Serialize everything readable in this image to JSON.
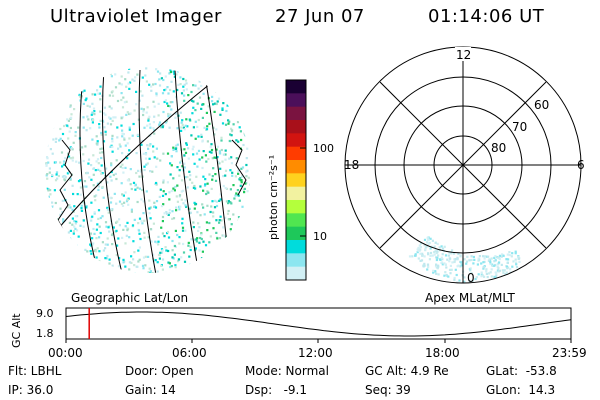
{
  "header": {
    "instrument": "Ultraviolet Imager",
    "date": "27 Jun 07",
    "time": "01:14:06 UT"
  },
  "left_panel": {
    "label": "Geographic Lat/Lon"
  },
  "colorbar": {
    "unit_label": "photon cm⁻²s⁻¹",
    "ticks": [
      "100",
      "10"
    ],
    "colors": [
      "#1a0033",
      "#4b0f5a",
      "#7a1340",
      "#a8101a",
      "#d21410",
      "#ff3c00",
      "#ff8c00",
      "#ffd21e",
      "#f2f2a0",
      "#b4ff3c",
      "#50e650",
      "#1ec85a",
      "#00dcdc",
      "#8ce6f0",
      "#d2f0f5"
    ]
  },
  "right_panel": {
    "label": "Apex MLat/MLT",
    "mlt_labels": [
      "12",
      "18",
      "6",
      "0"
    ],
    "mlat_labels": [
      "60",
      "70",
      "80"
    ]
  },
  "altitude_plot": {
    "ylabel": "GC Alt",
    "yticks": [
      "9.0",
      "1.8"
    ],
    "xticks": [
      "00:00",
      "06:00",
      "12:00",
      "18:00",
      "23:59"
    ],
    "current_marker_fraction": 0.046
  },
  "info": {
    "flt": "Flt: LBHL",
    "ip": "IP: 36.0",
    "door": "Door: Open",
    "gain": "Gain: 14",
    "mode": "Mode: Normal",
    "dsp": "Dsp:   -9.1",
    "gc_alt": "GC Alt: 4.9 Re",
    "seq": "Seq: 39",
    "glat": "GLat:  -53.8",
    "glon": "GLon:  14.3"
  }
}
